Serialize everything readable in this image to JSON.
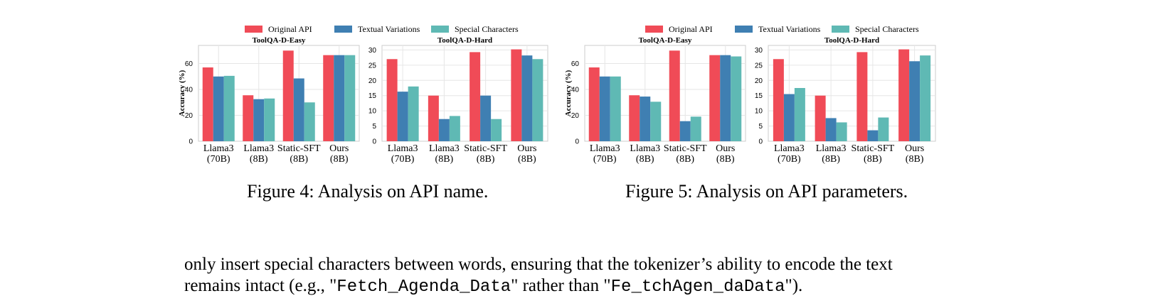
{
  "colors": {
    "original": "#F04B57",
    "textual": "#3F7FB2",
    "special": "#5FB9B4",
    "grid": "#E6E6E6",
    "frame": "#CCCCCC"
  },
  "legend": [
    "Original API",
    "Textual Variations",
    "Special Characters"
  ],
  "captions": {
    "fig4": "Figure 4: Analysis on API name.",
    "fig5": "Figure 5: Analysis on API parameters."
  },
  "paragraph": {
    "line1": "only insert special characters between words, ensuring that the tokenizer’s ability to encode the text",
    "line2_prefix": "remains intact (e.g., \"",
    "example_good": "Fetch_Agenda_Data",
    "line2_middle": "\" rather than \"",
    "example_bad": "Fe_tchAgen_daData",
    "line2_suffix": "\")."
  },
  "chart_data": [
    {
      "type": "bar",
      "figure": "Figure 4",
      "title": "ToolQA-D-Easy",
      "ylabel": "Accuracy (%)",
      "ylim": [
        0,
        74
      ],
      "yticks": [
        "0",
        "20",
        "40",
        "60"
      ],
      "categories": [
        [
          "Llama3",
          "(70B)"
        ],
        [
          "Llama3",
          "(8B)"
        ],
        [
          "Static-SFT",
          "(8B)"
        ],
        [
          "Ours",
          "(8B)"
        ]
      ],
      "series": [
        {
          "name": "Original API",
          "values": [
            57,
            35.5,
            70,
            66.5
          ]
        },
        {
          "name": "Textual Variations",
          "values": [
            50,
            32.5,
            48.5,
            66.5
          ]
        },
        {
          "name": "Special Characters",
          "values": [
            50.5,
            33,
            30,
            66.5
          ]
        }
      ]
    },
    {
      "type": "bar",
      "figure": "Figure 4",
      "title": "ToolQA-D-Hard",
      "ylabel": "",
      "ylim": [
        0,
        31.5
      ],
      "yticks": [
        "0",
        "5",
        "10",
        "15",
        "20",
        "25",
        "30"
      ],
      "categories": [
        [
          "Llama3",
          "(70B)"
        ],
        [
          "Llama3",
          "(8B)"
        ],
        [
          "Static-SFT",
          "(8B)"
        ],
        [
          "Ours",
          "(8B)"
        ]
      ],
      "series": [
        {
          "name": "Original API",
          "values": [
            27,
            15,
            29.3,
            30.2
          ]
        },
        {
          "name": "Textual Variations",
          "values": [
            16.3,
            7.3,
            15,
            28.2
          ]
        },
        {
          "name": "Special Characters",
          "values": [
            18,
            8.3,
            7.3,
            27
          ]
        }
      ]
    },
    {
      "type": "bar",
      "figure": "Figure 5",
      "title": "ToolQA-D-Easy",
      "ylabel": "Accuracy (%)",
      "ylim": [
        0,
        74
      ],
      "yticks": [
        "0",
        "20",
        "40",
        "60"
      ],
      "categories": [
        [
          "Llama3",
          "(70B)"
        ],
        [
          "Llama3",
          "(8B)"
        ],
        [
          "Static-SFT",
          "(8B)"
        ],
        [
          "Ours",
          "(8B)"
        ]
      ],
      "series": [
        {
          "name": "Original API",
          "values": [
            57,
            35.5,
            70,
            66.5
          ]
        },
        {
          "name": "Textual Variations",
          "values": [
            50,
            34.5,
            15.5,
            66.5
          ]
        },
        {
          "name": "Special Characters",
          "values": [
            50,
            30.5,
            19,
            65.5
          ]
        }
      ]
    },
    {
      "type": "bar",
      "figure": "Figure 5",
      "title": "ToolQA-D-Hard",
      "ylabel": "",
      "ylim": [
        0,
        31.5
      ],
      "yticks": [
        "0",
        "5",
        "10",
        "15",
        "20",
        "25",
        "30"
      ],
      "categories": [
        [
          "Llama3",
          "(70B)"
        ],
        [
          "Llama3",
          "(8B)"
        ],
        [
          "Static-SFT",
          "(8B)"
        ],
        [
          "Ours",
          "(8B)"
        ]
      ],
      "series": [
        {
          "name": "Original API",
          "values": [
            27,
            15,
            29.3,
            30.2
          ]
        },
        {
          "name": "Textual Variations",
          "values": [
            15.5,
            7.6,
            3.6,
            26.3
          ]
        },
        {
          "name": "Special Characters",
          "values": [
            17.5,
            6.2,
            7.8,
            28.2
          ]
        }
      ]
    }
  ]
}
